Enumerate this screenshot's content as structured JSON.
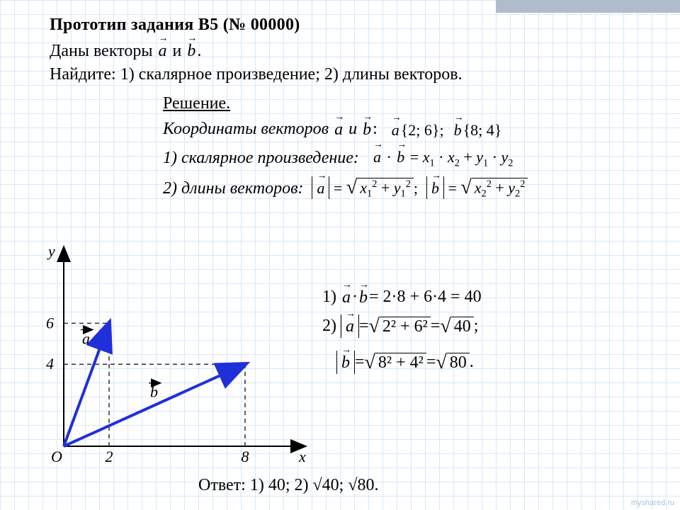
{
  "header": {
    "title": "Прототип задания B5 (№ 00000)",
    "given_prefix": "Даны векторы",
    "given_mid": "и",
    "given_suffix": ".",
    "find": "Найдите: 1) скалярное произведение; 2) длины векторов."
  },
  "solution": {
    "heading": "Решение.",
    "coords_label": "Координаты векторов",
    "and": "и",
    "vec_a_coords": "{2; 6}",
    "vec_b_coords": "{8; 4}",
    "item1_label": "1) скалярное произведение:",
    "dot_formula_lhs": "a·b",
    "dot_formula_rhs": "x₁ · x₂ + y₁ · y₂",
    "item2_label": "2) длины векторов:",
    "len_a_under": "x₁² + y₁²",
    "len_b_under": "x₂² + y₂²"
  },
  "calc": {
    "row1_num": "1)",
    "row1_expr": "= 2·8 + 6·4 = 40",
    "row2_num": "2)",
    "row2_a_under": "2² + 6²",
    "row2_a_eq": " = ",
    "row2_a_res": "40",
    "row2_a_tail": ";",
    "row3_b_under": "8² + 4²",
    "row3_b_eq": " = ",
    "row3_b_res": "80",
    "row3_b_tail": "."
  },
  "answer": {
    "label": "Ответ: 1) 40; 2) √40; √80."
  },
  "graph": {
    "x_label": "x",
    "y_label": "y",
    "origin_label": "O",
    "x_ticks": [
      2,
      8
    ],
    "y_ticks": [
      4,
      6
    ],
    "vec_a_label": "a",
    "vec_b_label": "b",
    "vec_a": [
      2,
      6
    ],
    "vec_b": [
      8,
      4
    ],
    "axis_color": "#000000",
    "vector_color": "#2030d8",
    "dash_color": "#303030",
    "background": "transparent",
    "xlim": [
      0,
      10
    ],
    "ylim": [
      0,
      9.5
    ]
  },
  "watermark": "myshared.ru"
}
